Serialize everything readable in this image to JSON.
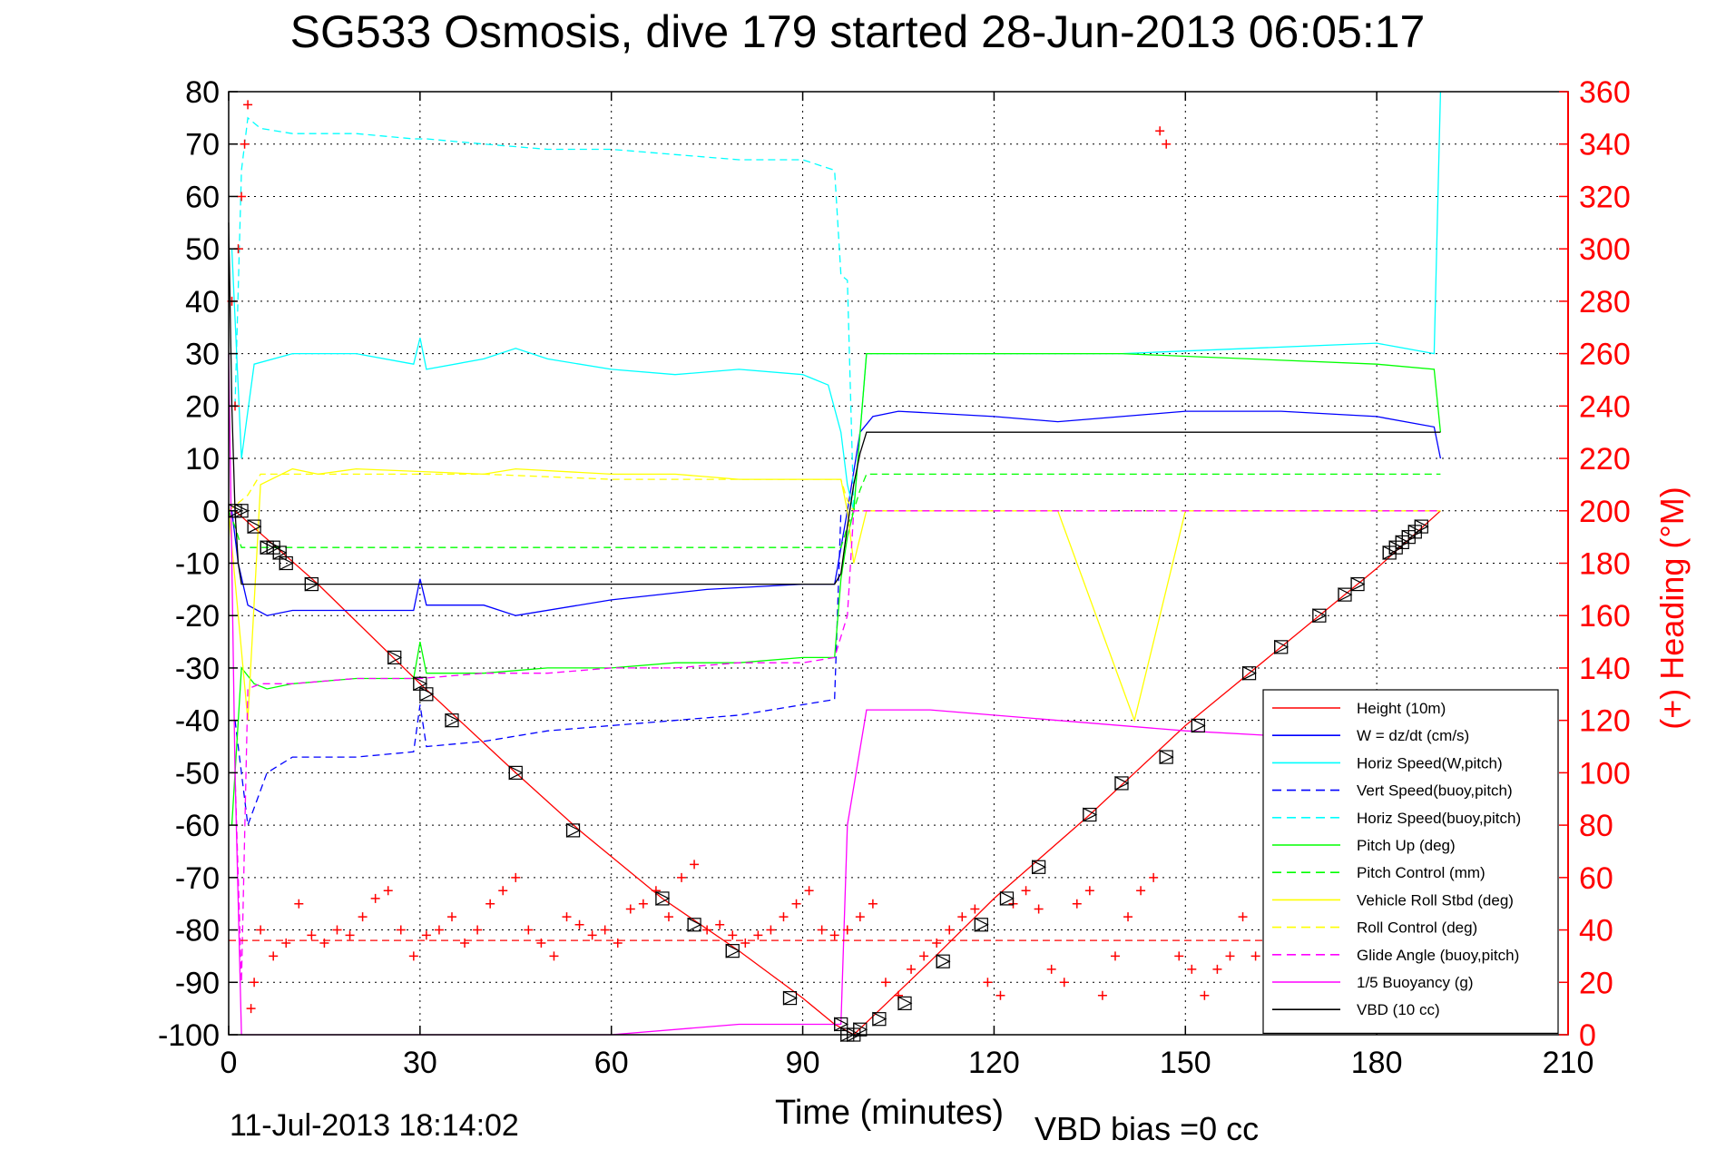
{
  "colors": {
    "height": "#ff0000",
    "w_dzdt": "#0000ff",
    "horiz_speed_w": "#00ffff",
    "vert_speed_buoy": "#0000ff",
    "horiz_speed_buoy": "#00ffff",
    "pitch_up": "#00ff00",
    "pitch_control": "#00ff00",
    "vehicle_roll": "#ffff00",
    "roll_control": "#ffff00",
    "glide_angle": "#ff00ff",
    "buoyancy": "#ff00ff",
    "vbd": "#000000",
    "heading": "#ff0000",
    "right_axis": "#ff0000"
  },
  "chart_data": {
    "type": "line",
    "title": "SG533 Osmosis, dive 179 started 28-Jun-2013 06:05:17",
    "xlabel": "Time (minutes)",
    "ylabel": "",
    "y2label": "(+) Heading (°M)",
    "footer_left": "11-Jul-2013 18:14:02",
    "footer_right": "VBD bias =0 cc",
    "xlim": [
      0,
      210
    ],
    "ylim": [
      -100,
      80
    ],
    "y2lim": [
      0,
      360
    ],
    "xticks": [
      "0",
      "30",
      "60",
      "90",
      "120",
      "150",
      "180",
      "210"
    ],
    "yticks": [
      "80",
      "70",
      "60",
      "50",
      "40",
      "30",
      "20",
      "10",
      "0",
      "-10",
      "-20",
      "-30",
      "-40",
      "-50",
      "-60",
      "-70",
      "-80",
      "-90",
      "-100"
    ],
    "y2ticks": [
      "360",
      "340",
      "320",
      "300",
      "280",
      "260",
      "240",
      "220",
      "200",
      "180",
      "160",
      "140",
      "120",
      "100",
      "80",
      "60",
      "40",
      "20",
      "0"
    ],
    "grid": true,
    "legend_position": "bottom-right",
    "series": [
      {
        "name": "Height (10m)",
        "style": "solid",
        "color": "#ff0000",
        "x": [
          1,
          14,
          30,
          45,
          55,
          68,
          80,
          90,
          95,
          98,
          110,
          120,
          135,
          150,
          165,
          180,
          190
        ],
        "y": [
          0,
          -14,
          -33,
          -50,
          -61,
          -74,
          -84,
          -93,
          -98,
          -100,
          -86,
          -74,
          -58,
          -41,
          -26,
          -11,
          0
        ]
      },
      {
        "name": "W = dz/dt (cm/s)",
        "style": "solid",
        "color": "#0000ff",
        "x": [
          0.5,
          1.5,
          3,
          6,
          10,
          20,
          29,
          30,
          31,
          40,
          45,
          60,
          75,
          90,
          95,
          97,
          99,
          101,
          105,
          120,
          130,
          140,
          150,
          165,
          180,
          189,
          190
        ],
        "y": [
          0,
          -10,
          -18,
          -20,
          -19,
          -19,
          -19,
          -13,
          -18,
          -18,
          -20,
          -17,
          -15,
          -14,
          -14,
          0,
          15,
          18,
          19,
          18,
          17,
          18,
          19,
          19,
          18,
          16,
          10
        ]
      },
      {
        "name": "Horiz Speed(W,pitch)",
        "style": "solid",
        "color": "#00ffff",
        "x": [
          0.5,
          2,
          4,
          10,
          20,
          29,
          30,
          31,
          40,
          45,
          50,
          60,
          70,
          80,
          90,
          94,
          96,
          97,
          98,
          100,
          110,
          120,
          140,
          160,
          180,
          189,
          190
        ],
        "y": [
          50,
          10,
          28,
          30,
          30,
          28,
          33,
          27,
          29,
          31,
          29,
          27,
          26,
          27,
          26,
          24,
          15,
          5,
          0,
          30,
          30,
          30,
          30,
          31,
          32,
          30,
          80
        ]
      },
      {
        "name": "Vert Speed(buoy,pitch)",
        "style": "dashed",
        "color": "#0000ff",
        "x": [
          1,
          3,
          6,
          10,
          20,
          29,
          30,
          31,
          40,
          50,
          60,
          70,
          80,
          90,
          95,
          96
        ],
        "y": [
          -40,
          -60,
          -50,
          -47,
          -47,
          -46,
          -37,
          -45,
          -44,
          -42,
          -41,
          -40,
          -39,
          -37,
          -36,
          0
        ]
      },
      {
        "name": "Horiz Speed(buoy,pitch)",
        "style": "dashed",
        "color": "#00ffff",
        "x": [
          1,
          2,
          3,
          5,
          10,
          20,
          29,
          30,
          31,
          40,
          50,
          60,
          70,
          80,
          90,
          95,
          96,
          97,
          98
        ],
        "y": [
          20,
          65,
          75,
          73,
          72,
          72,
          71,
          71,
          71,
          70,
          69,
          69,
          68,
          67,
          67,
          65,
          45,
          44,
          0
        ]
      },
      {
        "name": "Pitch Up (deg)",
        "style": "solid",
        "color": "#00ff00",
        "x": [
          0.5,
          2,
          4,
          6,
          10,
          20,
          29,
          30,
          31,
          40,
          50,
          60,
          70,
          80,
          90,
          95,
          96,
          97,
          98,
          100,
          120,
          140,
          160,
          180,
          189,
          190
        ],
        "y": [
          -60,
          -30,
          -33,
          -34,
          -33,
          -32,
          -32,
          -25,
          -31,
          -31,
          -30,
          -30,
          -29,
          -29,
          -28,
          -28,
          -13,
          -5,
          0,
          30,
          30,
          30,
          29,
          28,
          27,
          15
        ]
      },
      {
        "name": "Pitch Control (mm)",
        "style": "dashed",
        "color": "#00ff00",
        "x": [
          0,
          1,
          2,
          3,
          96,
          97,
          98,
          99,
          100,
          190
        ],
        "y": [
          0,
          -3,
          -7,
          -7,
          -7,
          -3,
          0,
          4,
          7,
          7
        ]
      },
      {
        "name": "Vehicle Roll Stbd (deg)",
        "style": "solid",
        "color": "#ffff00",
        "x": [
          0,
          3,
          5,
          10,
          14,
          20,
          40,
          45,
          60,
          70,
          80,
          90,
          96,
          97,
          98,
          100,
          110,
          120,
          130,
          142,
          150,
          170,
          190
        ],
        "y": [
          0,
          -40,
          5,
          8,
          7,
          8,
          7,
          8,
          7,
          7,
          6,
          6,
          6,
          0,
          -10,
          0,
          0,
          0,
          0,
          -40,
          0,
          0,
          0
        ]
      },
      {
        "name": "Roll Control (deg)",
        "style": "dashed",
        "color": "#ffff00",
        "x": [
          0,
          3,
          5,
          10,
          20,
          40,
          60,
          80,
          90,
          96,
          97,
          98,
          190
        ],
        "y": [
          0,
          3,
          7,
          7,
          7,
          7,
          6,
          6,
          6,
          6,
          2,
          0,
          0
        ]
      },
      {
        "name": "Glide Angle (buoy,pitch)",
        "style": "dashed",
        "color": "#ff00ff",
        "x": [
          1,
          2,
          3,
          5,
          10,
          20,
          30,
          40,
          50,
          60,
          70,
          80,
          90,
          95,
          97,
          98,
          190
        ],
        "y": [
          -50,
          -90,
          -34,
          -33,
          -33,
          -32,
          -32,
          -31,
          -31,
          -30,
          -30,
          -29,
          -29,
          -28,
          -20,
          0,
          0
        ]
      },
      {
        "name": "1/5 Buoyancy (g)",
        "style": "solid",
        "color": "#ff00ff",
        "x": [
          0,
          1,
          2,
          3,
          5,
          20,
          40,
          60,
          80,
          96,
          97,
          100,
          110,
          130,
          150,
          165
        ],
        "y": [
          30,
          -50,
          -100,
          -100,
          -100,
          -100,
          -100,
          -100,
          -98,
          -98,
          -60,
          -38,
          -38,
          -40,
          -42,
          -43
        ]
      },
      {
        "name": "VBD (10 cc)",
        "style": "solid",
        "color": "#000000",
        "x": [
          0,
          0.5,
          1,
          1.5,
          2,
          3,
          95,
          96,
          97,
          98,
          99,
          100,
          190
        ],
        "y": [
          55,
          20,
          0,
          -10,
          -14,
          -14,
          -14,
          -12,
          -3,
          5,
          11,
          15,
          15
        ]
      },
      {
        "name": "Heading (°M)",
        "style": "markers-plus",
        "color": "#ff0000",
        "axis": "right",
        "x": [
          0.5,
          1,
          1.5,
          2,
          2.5,
          3,
          3.5,
          4,
          5,
          7,
          9,
          11,
          13,
          15,
          17,
          19,
          21,
          23,
          25,
          27,
          29,
          31,
          33,
          35,
          37,
          39,
          41,
          43,
          45,
          47,
          49,
          51,
          53,
          55,
          57,
          59,
          61,
          63,
          65,
          67,
          69,
          71,
          73,
          75,
          77,
          79,
          81,
          83,
          85,
          87,
          89,
          91,
          93,
          95,
          97,
          99,
          101,
          103,
          105,
          107,
          109,
          111,
          113,
          115,
          117,
          119,
          121,
          123,
          125,
          127,
          129,
          131,
          133,
          135,
          137,
          139,
          141,
          143,
          145,
          146,
          147,
          149,
          151,
          153,
          155,
          157,
          159,
          161,
          163,
          165,
          167,
          169,
          171,
          173,
          175,
          177,
          179,
          181,
          183,
          185,
          187,
          189
        ],
        "y": [
          280,
          240,
          300,
          320,
          340,
          355,
          10,
          20,
          40,
          30,
          35,
          50,
          38,
          35,
          40,
          38,
          45,
          52,
          55,
          40,
          30,
          38,
          40,
          45,
          35,
          40,
          50,
          55,
          60,
          40,
          35,
          30,
          45,
          42,
          38,
          40,
          35,
          48,
          50,
          55,
          45,
          60,
          65,
          40,
          42,
          38,
          35,
          38,
          40,
          45,
          50,
          55,
          40,
          38,
          40,
          45,
          50,
          20,
          15,
          25,
          30,
          35,
          40,
          45,
          48,
          20,
          15,
          50,
          55,
          48,
          25,
          20,
          50,
          55,
          15,
          30,
          45,
          55,
          60,
          345,
          340,
          30,
          25,
          15,
          25,
          30,
          45,
          30,
          25,
          20,
          15,
          25,
          35,
          30,
          20,
          15,
          15,
          40,
          45,
          40,
          35,
          40
        ]
      },
      {
        "name": "Heading mean",
        "style": "dashed",
        "color": "#ff0000",
        "axis": "right",
        "x": [
          0,
          190
        ],
        "y": [
          36,
          36
        ]
      }
    ],
    "marker_series": {
      "name": "Height markers",
      "marker": "triangle-box",
      "color": "#000000",
      "x": [
        1,
        2,
        4,
        6,
        7,
        8,
        9,
        13,
        26,
        30,
        31,
        35,
        45,
        54,
        68,
        73,
        79,
        88,
        96,
        97,
        98,
        99,
        102,
        106,
        112,
        118,
        122,
        127,
        135,
        140,
        147,
        152,
        160,
        165,
        171,
        175,
        177,
        182,
        183,
        184,
        185,
        186,
        187
      ],
      "y": [
        0,
        0,
        -3,
        -7,
        -7,
        -8,
        -10,
        -14,
        -28,
        -33,
        -35,
        -40,
        -50,
        -61,
        -74,
        -79,
        -84,
        -93,
        -98,
        -100,
        -100,
        -99,
        -97,
        -94,
        -86,
        -79,
        -74,
        -68,
        -58,
        -52,
        -47,
        -41,
        -31,
        -26,
        -20,
        -16,
        -14,
        -8,
        -7,
        -6,
        -5,
        -4,
        -3
      ]
    }
  }
}
